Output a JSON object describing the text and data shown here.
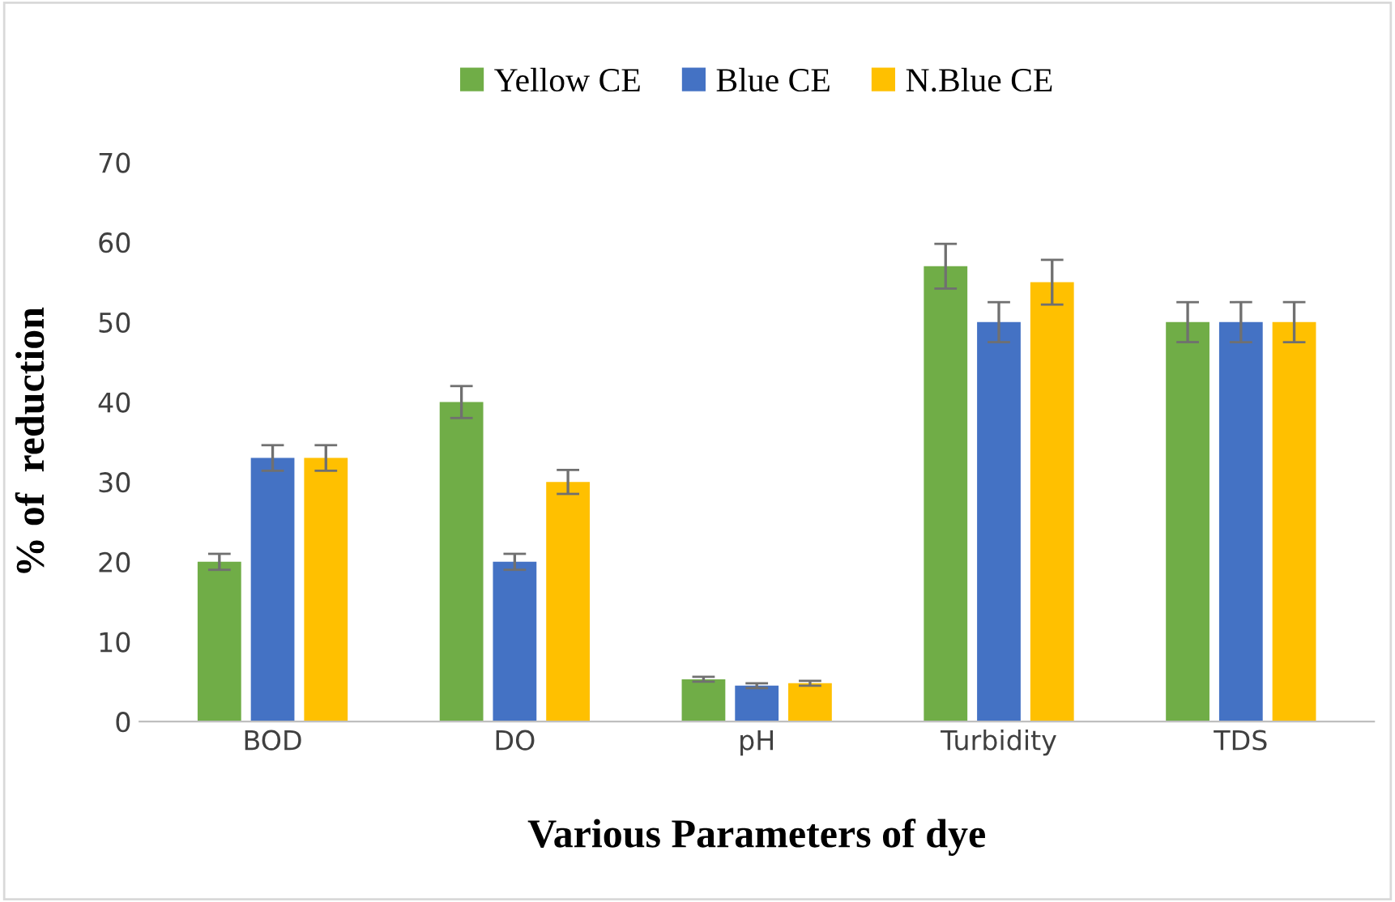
{
  "chart_data": {
    "type": "bar",
    "xlabel": "Various Parameters of dye",
    "ylabel": "% of  reduction",
    "categories": [
      "BOD",
      "DO",
      "pH",
      "Turbidity",
      "TDS"
    ],
    "series": [
      {
        "name": "Yellow CE",
        "color": "#70ad47",
        "values": [
          20,
          40,
          5.3,
          57,
          50
        ],
        "errors": [
          1,
          2,
          0.3,
          2.8,
          2.5
        ]
      },
      {
        "name": "Blue CE",
        "color": "#4472c4",
        "values": [
          33,
          20,
          4.5,
          50,
          50
        ],
        "errors": [
          1.6,
          1,
          0.3,
          2.5,
          2.5
        ]
      },
      {
        "name": "N.Blue CE",
        "color": "#ffc000",
        "values": [
          33,
          30,
          4.8,
          55,
          50
        ],
        "errors": [
          1.6,
          1.5,
          0.3,
          2.8,
          2.5
        ]
      }
    ],
    "ylim": [
      0,
      70
    ],
    "yticks": [
      0,
      10,
      20,
      30,
      40,
      50,
      60,
      70
    ],
    "grid": false,
    "legend": "top"
  }
}
